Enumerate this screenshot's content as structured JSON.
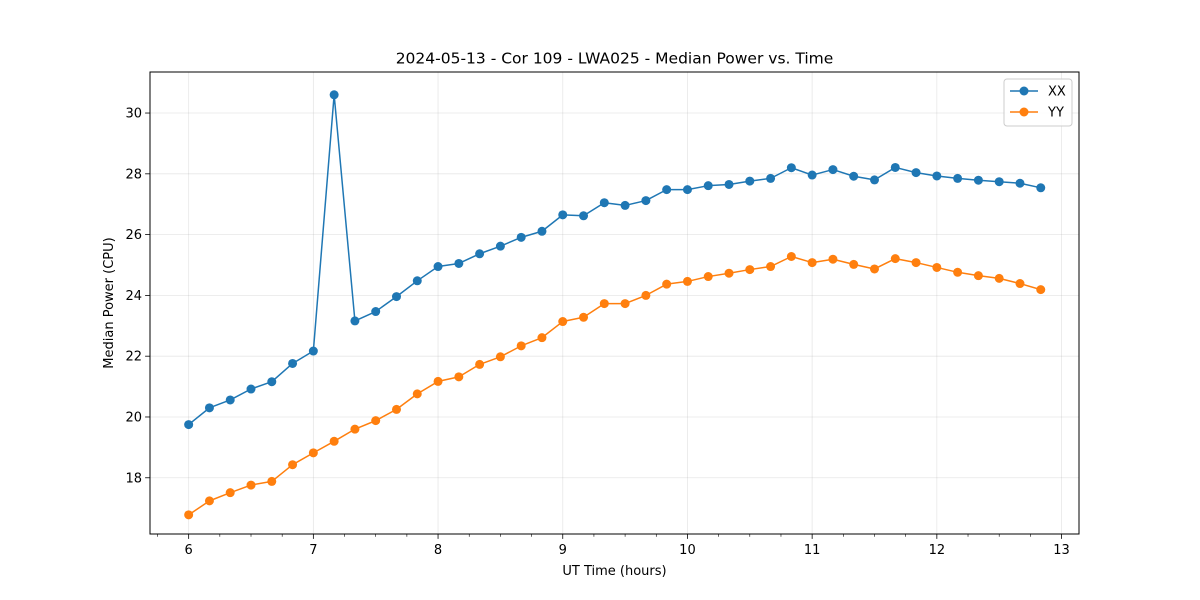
{
  "chart_data": {
    "type": "line",
    "title": "2024-05-13 - Cor 109 - LWA025 - Median Power vs. Time",
    "xlabel": "UT Time (hours)",
    "ylabel": "Median Power (CPU)",
    "xlim": [
      5.69,
      13.14
    ],
    "ylim": [
      16.15,
      31.35
    ],
    "xticks": [
      6,
      7,
      8,
      9,
      10,
      11,
      12,
      13
    ],
    "xminor_step": 0.25,
    "yticks": [
      18,
      20,
      22,
      24,
      26,
      28,
      30
    ],
    "grid": true,
    "legend_position": "top-right",
    "x": [
      6.0,
      6.1667,
      6.3333,
      6.5,
      6.6667,
      6.8333,
      7.0,
      7.1667,
      7.3333,
      7.5,
      7.6667,
      7.8333,
      8.0,
      8.1667,
      8.3333,
      8.5,
      8.6667,
      8.8333,
      9.0,
      9.1667,
      9.3333,
      9.5,
      9.6667,
      9.8333,
      10.0,
      10.1667,
      10.3333,
      10.5,
      10.6667,
      10.8333,
      11.0,
      11.1667,
      11.3333,
      11.5,
      11.6667,
      11.8333,
      12.0,
      12.1667,
      12.3333,
      12.5,
      12.6667,
      12.8333
    ],
    "series": [
      {
        "name": "XX",
        "color": "#1f77b4",
        "values": [
          19.75,
          20.3,
          20.56,
          20.92,
          21.16,
          21.76,
          22.17,
          30.6,
          23.16,
          23.47,
          23.96,
          24.48,
          24.95,
          25.05,
          25.37,
          25.62,
          25.91,
          26.11,
          26.65,
          26.62,
          27.05,
          26.96,
          27.12,
          27.48,
          27.48,
          27.61,
          27.65,
          27.76,
          27.85,
          28.2,
          27.96,
          28.14,
          27.92,
          27.8,
          28.21,
          28.04,
          27.93,
          27.85,
          27.79,
          27.74,
          27.69,
          27.54
        ]
      },
      {
        "name": "YY",
        "color": "#ff7f0e",
        "values": [
          16.78,
          17.24,
          17.51,
          17.76,
          17.88,
          18.43,
          18.82,
          19.2,
          19.6,
          19.88,
          20.25,
          20.76,
          21.17,
          21.32,
          21.73,
          21.98,
          22.34,
          22.61,
          23.14,
          23.28,
          23.73,
          23.73,
          24.0,
          24.37,
          24.46,
          24.62,
          24.73,
          24.85,
          24.95,
          25.28,
          25.08,
          25.19,
          25.02,
          24.87,
          25.21,
          25.08,
          24.92,
          24.76,
          24.65,
          24.56,
          24.39,
          24.19
        ]
      }
    ]
  }
}
